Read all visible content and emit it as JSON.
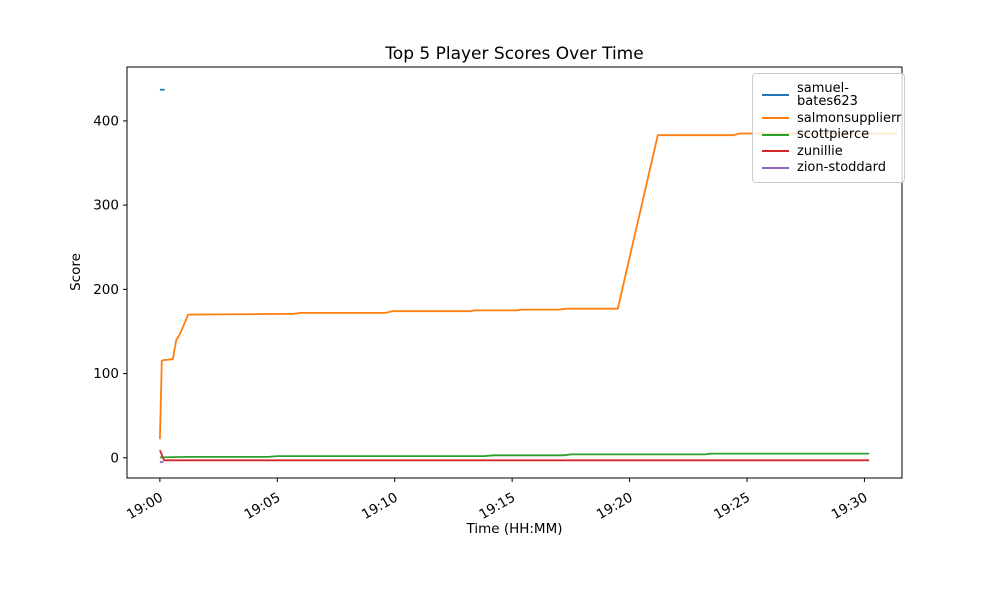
{
  "chart_data": {
    "type": "line",
    "title": "Top 5 Player Scores Over Time",
    "xlabel": "Time (HH:MM)",
    "ylabel": "Score",
    "x_unit": "minutes after 19:00",
    "x_ticks": [
      0,
      5,
      10,
      15,
      20,
      25,
      30
    ],
    "x_tick_labels": [
      "19:00",
      "19:05",
      "19:10",
      "19:15",
      "19:20",
      "19:25",
      "19:30"
    ],
    "y_ticks": [
      0,
      100,
      200,
      300,
      400
    ],
    "xlim": [
      -1.4,
      31.6
    ],
    "ylim": [
      -24,
      464
    ],
    "grid": false,
    "legend_position": "upper right",
    "x_tick_rotation_deg": 30,
    "series": [
      {
        "name": "samuel-bates623",
        "color": "#1f77b4",
        "points": [
          [
            0,
            437
          ],
          [
            0.2,
            437
          ]
        ]
      },
      {
        "name": "salmonsupplierr",
        "color": "#ff7f0e",
        "points": [
          [
            0,
            22
          ],
          [
            0.08,
            115
          ],
          [
            0.15,
            116
          ],
          [
            0.55,
            117
          ],
          [
            0.7,
            140
          ],
          [
            0.8,
            144
          ],
          [
            0.95,
            153
          ],
          [
            1.2,
            170
          ],
          [
            5.7,
            171
          ],
          [
            6.0,
            172
          ],
          [
            9.6,
            172
          ],
          [
            9.9,
            174
          ],
          [
            13.2,
            174
          ],
          [
            13.4,
            175
          ],
          [
            15.2,
            175
          ],
          [
            15.4,
            176
          ],
          [
            17.0,
            176
          ],
          [
            17.3,
            177
          ],
          [
            19.5,
            177
          ],
          [
            21.2,
            383
          ],
          [
            24.4,
            383
          ],
          [
            24.7,
            385
          ],
          [
            31.4,
            385
          ]
        ]
      },
      {
        "name": "scottpierce",
        "color": "#2ca02c",
        "points": [
          [
            0,
            0.5
          ],
          [
            1.2,
            1
          ],
          [
            4.6,
            1
          ],
          [
            5.0,
            2
          ],
          [
            13.8,
            2
          ],
          [
            14.2,
            3
          ],
          [
            17.2,
            3
          ],
          [
            17.5,
            4
          ],
          [
            23.2,
            4
          ],
          [
            23.5,
            5
          ],
          [
            30.2,
            5
          ]
        ]
      },
      {
        "name": "zunillie",
        "color": "#d62728",
        "points": [
          [
            0,
            9
          ],
          [
            0.18,
            -3
          ],
          [
            30.2,
            -3
          ]
        ]
      },
      {
        "name": "zion-stoddard",
        "color": "#9467bd",
        "points": [
          [
            0,
            -5
          ],
          [
            0.15,
            -5
          ]
        ]
      }
    ]
  }
}
